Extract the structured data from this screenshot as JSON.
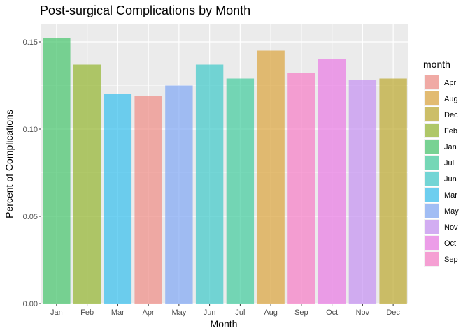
{
  "chart_data": {
    "type": "bar",
    "title": "Post-surgical Complications by Month",
    "xlabel": "Month",
    "ylabel": "Percent of Complications",
    "categories": [
      "Jan",
      "Feb",
      "Mar",
      "Apr",
      "May",
      "Jun",
      "Jul",
      "Aug",
      "Sep",
      "Oct",
      "Nov",
      "Dec"
    ],
    "values": [
      0.152,
      0.137,
      0.12,
      0.119,
      0.125,
      0.137,
      0.129,
      0.145,
      0.132,
      0.14,
      0.128,
      0.129
    ],
    "ylim": [
      0,
      0.16
    ],
    "yticks": [
      0.0,
      0.05,
      0.1,
      0.15
    ],
    "ytick_labels": [
      "0.00",
      "0.05",
      "0.10",
      "0.15"
    ],
    "grid": true,
    "background": "#ebebeb",
    "bar_opacity": 0.7,
    "colors": {
      "Jan": "#45c56b",
      "Feb": "#93b52d",
      "Mar": "#35bfee",
      "Apr": "#f08c85",
      "May": "#7fa6f5",
      "Jun": "#3dc9c9",
      "Jul": "#40cc9c",
      "Aug": "#dca43c",
      "Sep": "#f77cc6",
      "Oct": "#ea79e4",
      "Nov": "#c590f2",
      "Dec": "#bca82e"
    },
    "legend": {
      "title": "month",
      "position": "right",
      "entries": [
        "Apr",
        "Aug",
        "Dec",
        "Feb",
        "Jan",
        "Jul",
        "Jun",
        "Mar",
        "May",
        "Nov",
        "Oct",
        "Sep"
      ]
    }
  }
}
